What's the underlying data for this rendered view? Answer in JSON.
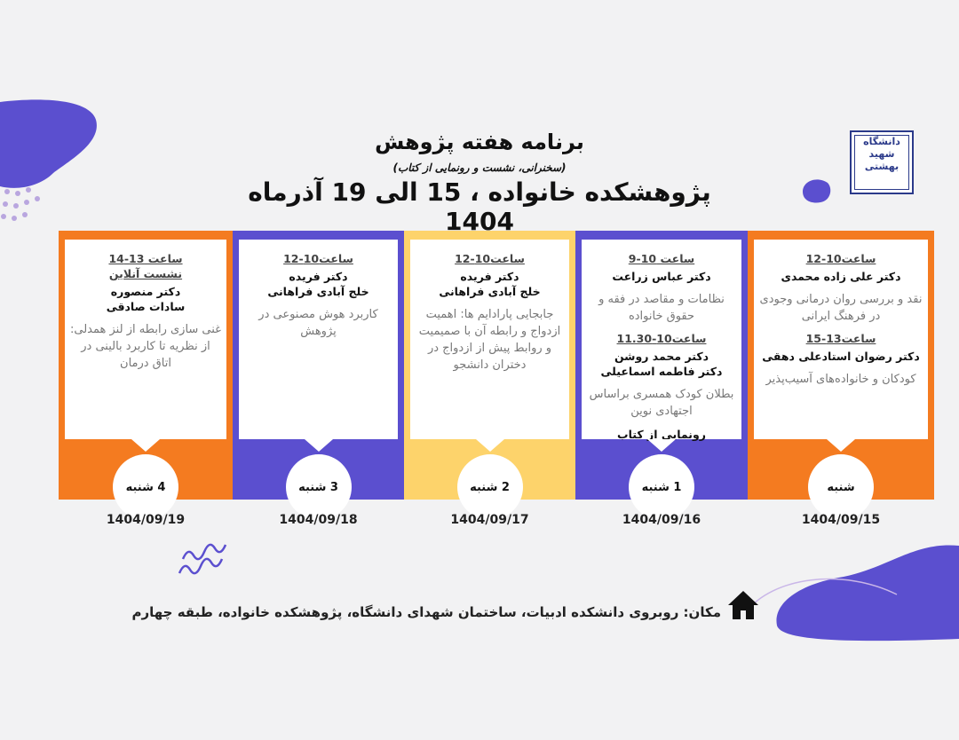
{
  "header": {
    "title": "برنامه هفته پژوهش",
    "subtitle": "(سخنرانی، نشست و رونمایی از کتاب)",
    "headline": "پژوهشکده خانواده ، 15 الی 19 آذرماه 1404",
    "logo_text": "دانشگاه شهید بهشتی ۱۳۳۸"
  },
  "colors": {
    "orange": "#F47B20",
    "purple": "#5B4FCF",
    "yellow": "#FDD36B",
    "background": "#F2F2F3"
  },
  "days": [
    {
      "day": "شنبه",
      "date": "1404/09/15",
      "color": "#F47B20",
      "sessions": [
        {
          "time": "ساعت10-12",
          "names": [
            "دکتر علی زاده محمدی"
          ],
          "desc": "نقد و بررسی روان درمانی وجودی در فرهنگ ایرانی"
        },
        {
          "time": "ساعت13-15",
          "names": [
            "دکتر رضوان استادعلی دهقی"
          ],
          "desc": "کودکان و خانواده‌های آسیب‌پذیر"
        }
      ]
    },
    {
      "day": "1 شنبه",
      "date": "1404/09/16",
      "color": "#5B4FCF",
      "sessions": [
        {
          "time": "ساعت 10-9",
          "names": [
            "دکتر عباس زراعت"
          ],
          "desc": "نظامات و مقاصد در فقه و حقوق خانواده"
        },
        {
          "time": "ساعت10-11.30",
          "names": [
            "دکتر محمد روشن",
            "دکتر فاطمه اسماعیلی"
          ],
          "desc": "بطلان کودک همسری براساس اجتهادی نوین",
          "extra": "رونمایی از کتاب"
        }
      ]
    },
    {
      "day": "2 شنبه",
      "date": "1404/09/17",
      "color": "#FDD36B",
      "sessions": [
        {
          "time": "ساعت10-12",
          "names": [
            "دکتر فریده",
            "خلج آبادی فراهانی"
          ],
          "desc": "جابجایی پارادایم ها: اهمیت ازدواج و رابطه آن با صمیمیت و روابط پیش از ازدواج در دختران دانشجو"
        }
      ]
    },
    {
      "day": "3 شنبه",
      "date": "1404/09/18",
      "color": "#5B4FCF",
      "sessions": [
        {
          "time": "ساعت10-12",
          "names": [
            "دکتر فریده",
            "خلج آبادی فراهانی"
          ],
          "desc": "کاربرد هوش مصنوعی در پژوهش"
        }
      ]
    },
    {
      "day": "4 شنبه",
      "date": "1404/09/19",
      "color": "#F47B20",
      "sessions": [
        {
          "time": "ساعت 13-14",
          "note": "نشست آنلاین",
          "names": [
            "دکتر منصوره",
            "سادات صادقی"
          ],
          "desc": "غنی سازی رابطه از لنز همدلی: از نظریه تا کاربرد بالینی در اتاق درمان"
        }
      ]
    }
  ],
  "footer": {
    "location": "مکان: روبروی دانشکده ادبیات، ساختمان شهدای دانشگاه، پژوهشکده خانواده، طبقه چهارم",
    "icon": "home-icon"
  }
}
